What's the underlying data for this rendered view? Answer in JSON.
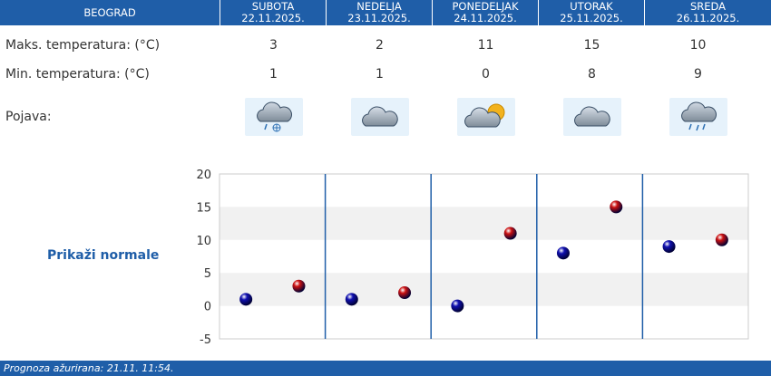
{
  "header": {
    "city": "BEOGRAD",
    "days": [
      {
        "name": "SUBOTA",
        "date": "22.11.2025."
      },
      {
        "name": "NEDELJA",
        "date": "23.11.2025."
      },
      {
        "name": "PONEDELJAK",
        "date": "24.11.2025."
      },
      {
        "name": "UTORAK",
        "date": "25.11.2025."
      },
      {
        "name": "SREDA",
        "date": "26.11.2025."
      }
    ]
  },
  "rows": {
    "max_label": "Maks. temperatura: (°C)",
    "min_label": "Min. temperatura: (°C)",
    "phenomenon_label": "Pojava:",
    "max": [
      "3",
      "2",
      "11",
      "15",
      "10"
    ],
    "min": [
      "1",
      "1",
      "0",
      "8",
      "9"
    ],
    "icons": [
      "cloud-snow-icon",
      "cloud-icon",
      "cloud-sun-icon",
      "cloud-icon",
      "cloud-rain-icon"
    ]
  },
  "normals_link": "Prikaži normale",
  "footer": "Prognoza ažurirana:  21.11. 11:54.",
  "colors": {
    "header": "#1f5ea8",
    "min_marker": "#1010b0",
    "max_marker": "#cc1111",
    "separator": "#1f5ea8"
  },
  "chart_data": {
    "type": "scatter",
    "categories": [
      "22.11.2025.",
      "23.11.2025.",
      "24.11.2025.",
      "25.11.2025.",
      "26.11.2025."
    ],
    "series": [
      {
        "values": [
          1,
          1,
          0,
          8,
          9
        ],
        "color": "#1010b0"
      },
      {
        "values": [
          3,
          2,
          11,
          15,
          10
        ],
        "color": "#cc1111"
      }
    ],
    "yticks": [
      "20",
      "15",
      "10",
      "5",
      "0",
      "-5"
    ],
    "ylim": [
      -5,
      20
    ],
    "grid": "alternating horizontal bands"
  }
}
